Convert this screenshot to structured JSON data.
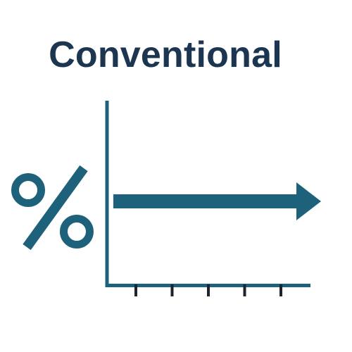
{
  "title": "Conventional",
  "colors": {
    "title_text": "#1c3550",
    "icon": "#1d627a",
    "tick": "#1a2530"
  },
  "icons": {
    "percent": "percent-icon",
    "trend_arrow": "flat-right-arrow-icon"
  },
  "axis": {
    "tick_count": 5
  }
}
